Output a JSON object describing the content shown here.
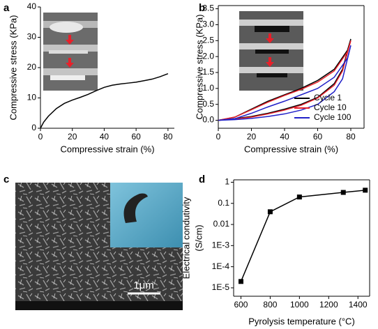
{
  "chart_data": [
    {
      "type": "line",
      "label": "a",
      "xlabel": "Compressive strain (%)",
      "ylabel": "Compressive stress (KPa)",
      "x": [
        0,
        2,
        5,
        10,
        15,
        20,
        25,
        30,
        35,
        40,
        45,
        50,
        55,
        60,
        65,
        70,
        75,
        80
      ],
      "series": [
        {
          "name": null,
          "color": "#000000",
          "values": [
            0,
            2,
            4,
            6.5,
            8.2,
            9.3,
            10.2,
            11.2,
            12.4,
            13.5,
            14.2,
            14.6,
            14.9,
            15.2,
            15.7,
            16.2,
            17,
            18
          ]
        }
      ],
      "xlim": [
        0,
        84
      ],
      "ylim": [
        0,
        40
      ],
      "xticks": [
        0,
        20,
        40,
        60,
        80
      ],
      "yticks": [
        0,
        10,
        20,
        30,
        40
      ],
      "box": false
    },
    {
      "type": "line",
      "label": "b",
      "xlabel": "Compressive strain (%)",
      "ylabel": "Compressive stress (KPa)",
      "x": [
        0,
        10,
        20,
        30,
        40,
        50,
        60,
        70,
        75,
        80,
        78,
        70,
        60,
        50,
        40,
        30,
        20,
        10,
        0
      ],
      "series": [
        {
          "name": "Cycle 1",
          "color": "#000000",
          "values": [
            0,
            0.05,
            0.12,
            0.22,
            0.35,
            0.5,
            0.72,
            1.15,
            1.6,
            2.55,
            2.2,
            1.6,
            1.25,
            1.0,
            0.8,
            0.6,
            0.35,
            0.1,
            0
          ]
        },
        {
          "name": "Cycle 10",
          "color": "#e8202a",
          "values": [
            0,
            0.04,
            0.1,
            0.2,
            0.32,
            0.47,
            0.7,
            1.1,
            1.55,
            2.5,
            2.15,
            1.55,
            1.2,
            0.97,
            0.78,
            0.57,
            0.33,
            0.1,
            0
          ]
        },
        {
          "name": "Cycle 100",
          "color": "#2020c8",
          "values": [
            0,
            0.02,
            0.06,
            0.12,
            0.2,
            0.32,
            0.5,
            0.9,
            1.3,
            2.35,
            1.95,
            1.35,
            1.0,
            0.8,
            0.6,
            0.42,
            0.22,
            0.05,
            0
          ]
        }
      ],
      "xlim": [
        0,
        88
      ],
      "ylim": [
        -0.25,
        3.6
      ],
      "xticks": [
        0,
        20,
        40,
        60,
        80
      ],
      "yticks": [
        {
          "value": 0,
          "label": "0.0"
        },
        0.5,
        {
          "value": 1,
          "label": "1.0"
        },
        1.5,
        {
          "value": 2,
          "label": "2.0"
        },
        2.5,
        {
          "value": 3,
          "label": "3.0"
        },
        3.5
      ],
      "box": true,
      "legend": "lower right"
    },
    {
      "type": "image",
      "label": "c",
      "scale_bar": "1μm"
    },
    {
      "type": "line",
      "label": "d",
      "xlabel": "Pyrolysis temperature (°C)",
      "ylabel": [
        "Electrical condutivity",
        "(S/cm)"
      ],
      "x": [
        600,
        800,
        1000,
        1300,
        1450
      ],
      "series": [
        {
          "name": null,
          "color": "#000000",
          "values": [
            2e-05,
            0.04,
            0.2,
            0.33,
            0.42
          ]
        }
      ],
      "xlim": [
        550,
        1480
      ],
      "ylim": [
        4e-06,
        1.3
      ],
      "ylog": true,
      "markers": "square",
      "xticks": [
        600,
        800,
        1000,
        1200,
        1400
      ],
      "yticks": [
        1,
        0.1,
        0.01,
        {
          "value": 0.001,
          "label": "1E-3"
        },
        {
          "value": 0.0001,
          "label": "1E-4"
        },
        {
          "value": 1e-05,
          "label": "1E-5"
        }
      ],
      "box": true
    }
  ]
}
